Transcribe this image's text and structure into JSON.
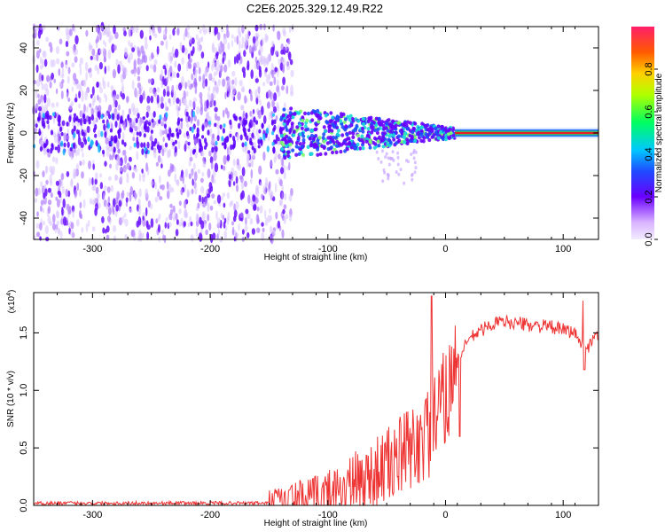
{
  "title": "C2E6.2025.329.12.49.R22",
  "colors": {
    "spectro_low": "#cfb3ff",
    "spectro_mid": "#7a1fff",
    "spectro_band_green": "#2ecc71",
    "spectro_band_red": "#e62020",
    "snr_line": "#ee3333"
  },
  "chart_data": [
    {
      "type": "heatmap",
      "name": "spectrogram",
      "xlabel": "Height of straight line (km)",
      "ylabel": "Frequency (Hz)",
      "xlim": [
        -350,
        130
      ],
      "ylim": [
        -50,
        50
      ],
      "xticks": [
        -300,
        -200,
        -100,
        0,
        100
      ],
      "yticks": [
        -40,
        -20,
        0,
        20,
        40
      ],
      "xtick_labels": [
        "-300",
        "-200",
        "-100",
        "0",
        "100"
      ],
      "ytick_labels": [
        "-40",
        "-20",
        "0",
        "20",
        "40"
      ],
      "noise_region_x": [
        -350,
        -130
      ],
      "signal_band_start_x": -140,
      "tone_start_x": 8,
      "tone_frequency": 0,
      "colorbar": {
        "label": "Normalized spectral amplitude",
        "range": [
          0,
          1
        ],
        "ticks": [
          0.0,
          0.2,
          0.4,
          0.6,
          0.8
        ],
        "tick_labels": [
          "0.0",
          "0.2",
          "0.4",
          "0.6",
          "0.8"
        ]
      }
    },
    {
      "type": "line",
      "name": "snr",
      "xlabel": "Height of straight line (km)",
      "ylabel": "SNR (10 * v/v)",
      "scale_label": "(x10",
      "scale_exponent": "4",
      "xlim": [
        -350,
        130
      ],
      "ylim": [
        0,
        1.85
      ],
      "xticks": [
        -300,
        -200,
        -100,
        0,
        100
      ],
      "yticks": [
        0.0,
        0.5,
        1.0,
        1.5
      ],
      "xtick_labels": [
        "-300",
        "-200",
        "-100",
        "0",
        "100"
      ],
      "ytick_labels": [
        "0.0",
        "0.5",
        "1.0",
        "1.5"
      ],
      "trend": {
        "x": [
          -350,
          -150,
          -110,
          -90,
          -70,
          -50,
          -30,
          -15,
          -5,
          0,
          10,
          20,
          30,
          40,
          50,
          70,
          90,
          110,
          118,
          130
        ],
        "y": [
          0.02,
          0.02,
          0.06,
          0.13,
          0.22,
          0.34,
          0.48,
          0.62,
          0.8,
          0.95,
          1.25,
          1.45,
          1.52,
          1.58,
          1.6,
          1.57,
          1.55,
          1.5,
          1.35,
          1.48
        ]
      },
      "notable_points": [
        {
          "x": -12,
          "y": 1.82
        },
        {
          "x": 12,
          "y": 0.6
        },
        {
          "x": 117,
          "y": 1.78
        },
        {
          "x": 118,
          "y": 1.18
        }
      ]
    }
  ]
}
